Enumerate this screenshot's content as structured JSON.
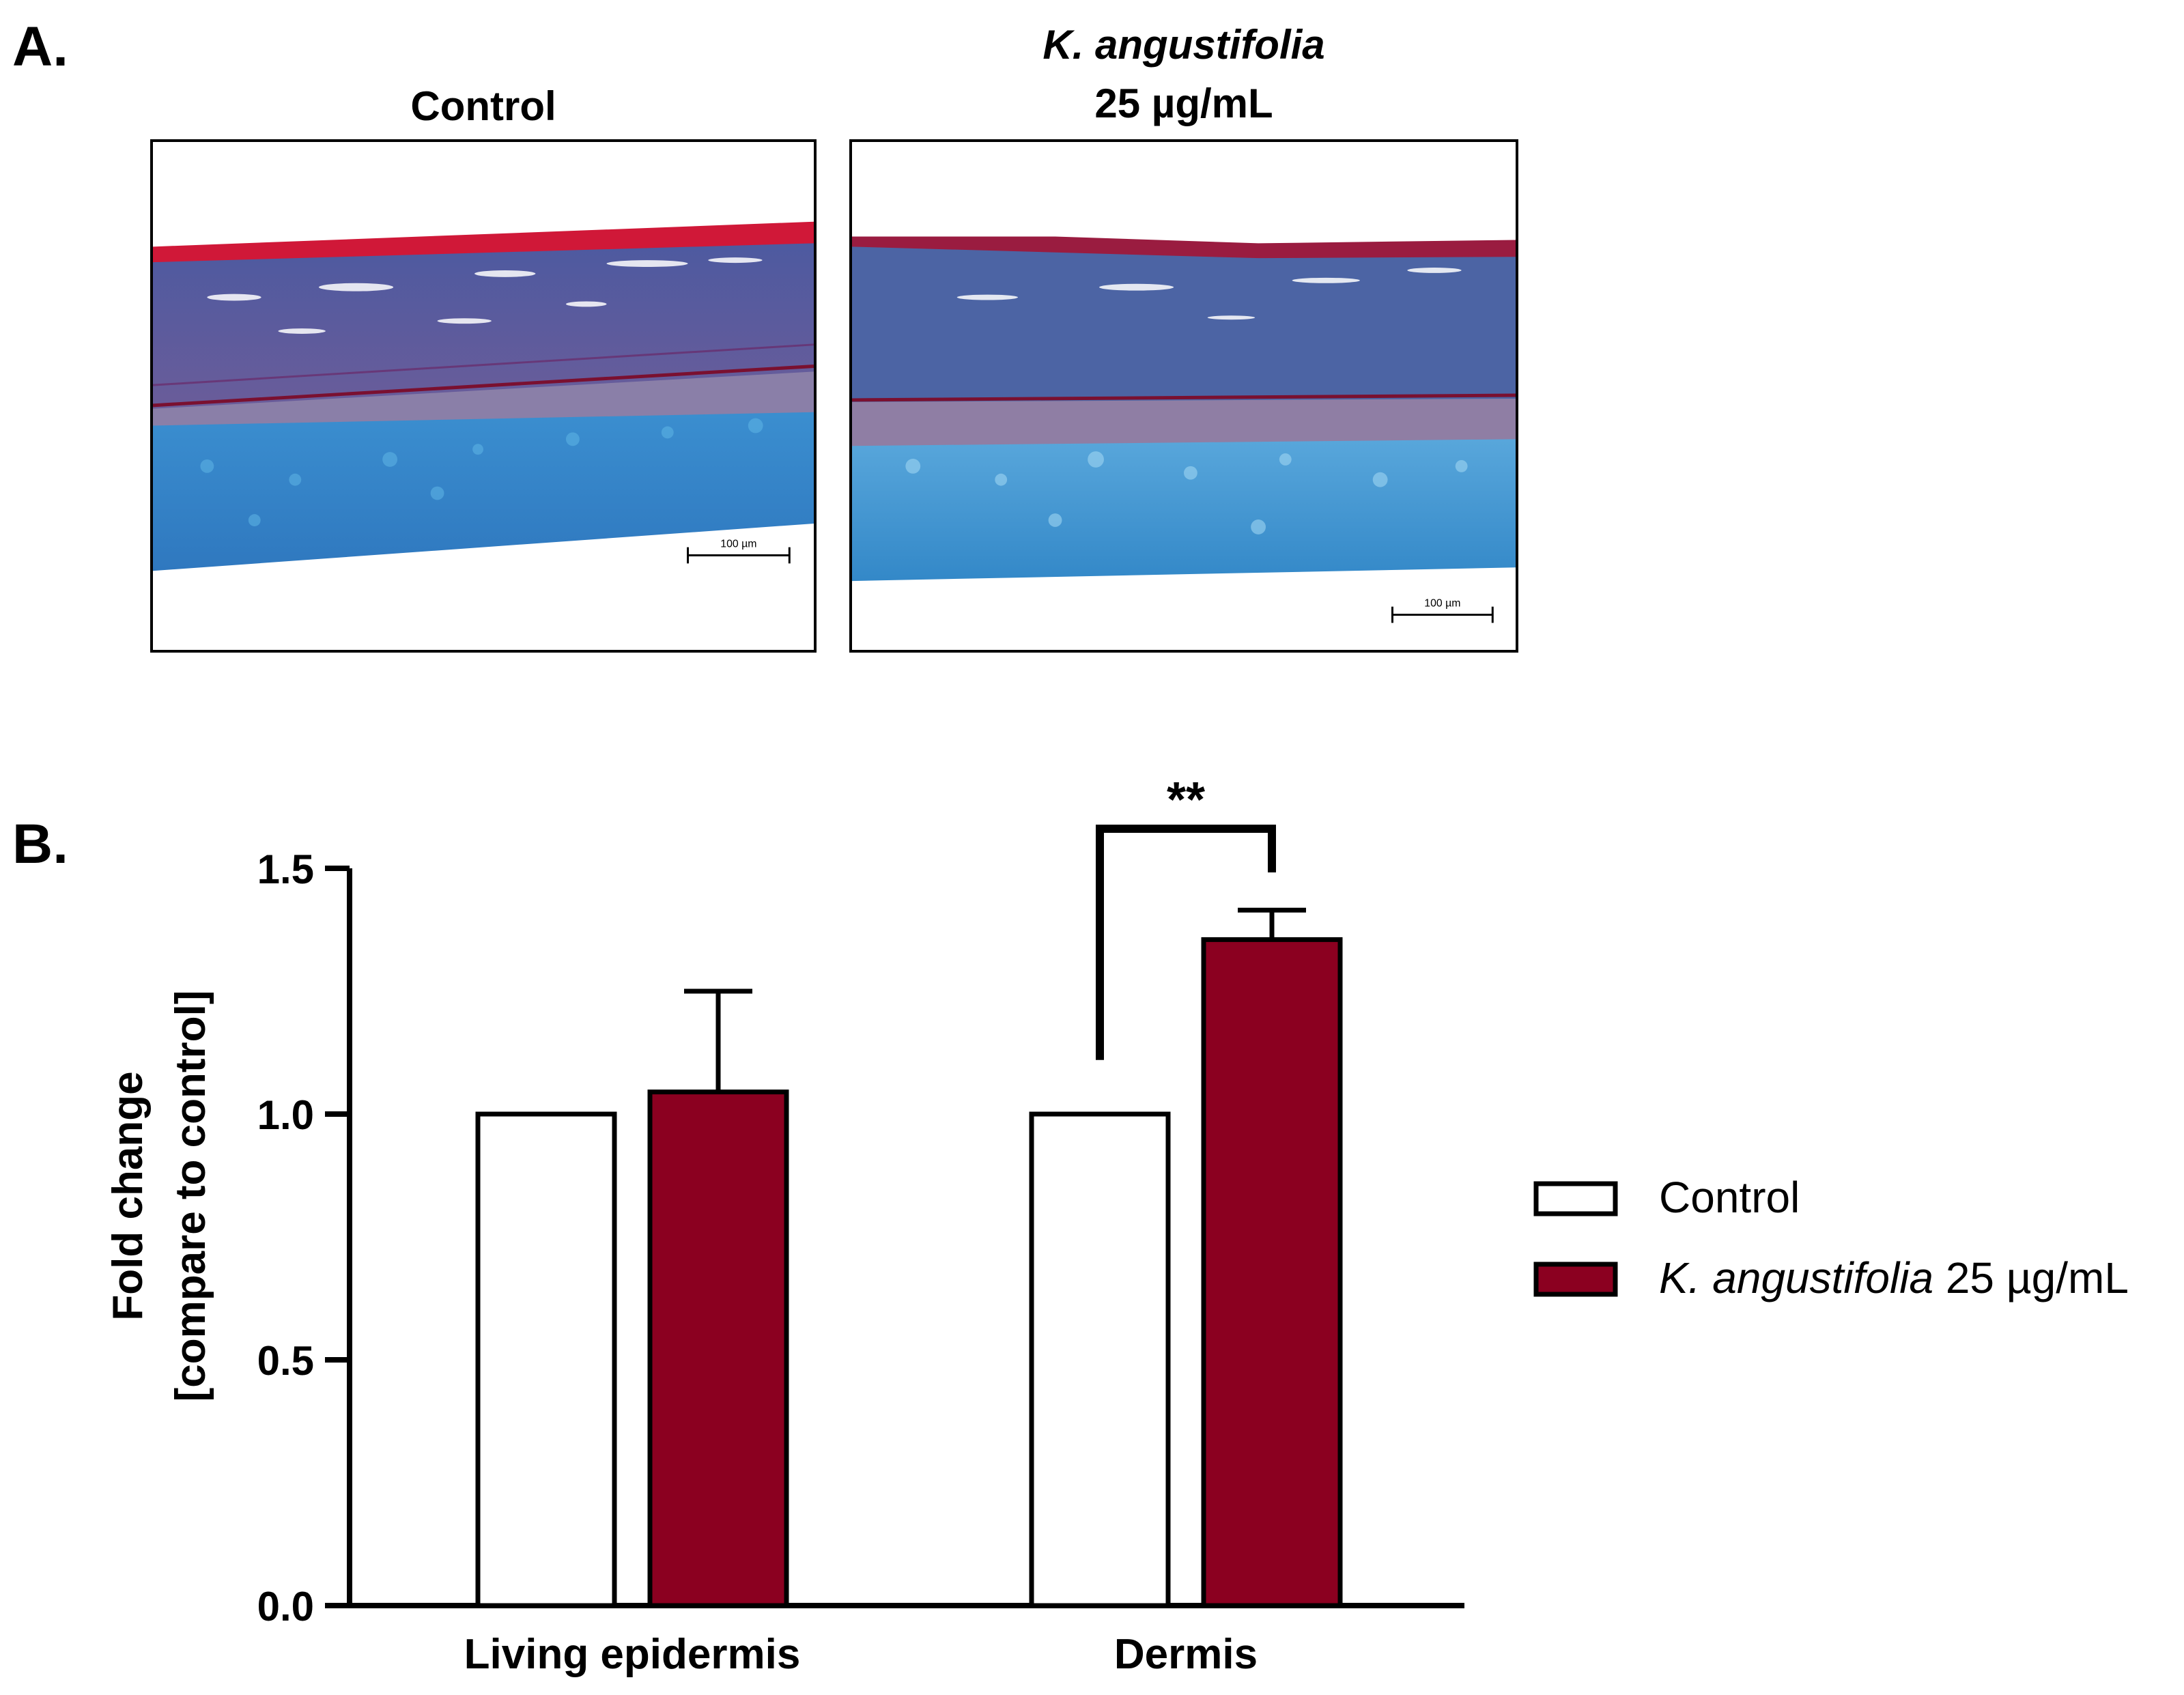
{
  "panel_a": {
    "letter": "A.",
    "images": [
      {
        "title_lines": [
          "Control"
        ],
        "scalebar_label": "100 µm"
      },
      {
        "title_lines": [
          "K. angustifolia",
          "25 µg/mL"
        ],
        "scalebar_label": "100 µm"
      }
    ]
  },
  "panel_b": {
    "letter": "B."
  },
  "colors": {
    "control_fill": "#ffffff",
    "treatment_fill": "#8b0020",
    "stroke": "#000000"
  },
  "chart_data": {
    "type": "bar",
    "categories": [
      "Living epidermis",
      "Dermis"
    ],
    "series": [
      {
        "name": "Control",
        "values": [
          1.0,
          1.0
        ],
        "errors": [
          0,
          0
        ]
      },
      {
        "name": "K. angustifolia 25 µg/mL",
        "values": [
          1.045,
          1.355
        ],
        "errors": [
          0.205,
          0.06
        ]
      }
    ],
    "ylabel_lines": [
      "Fold change",
      "[compare to control]"
    ],
    "ylim": [
      0.0,
      1.5
    ],
    "yticks": [
      "0.0",
      "0.5",
      "1.0",
      "1.5"
    ],
    "significance": [
      {
        "category": "Dermis",
        "label": "**"
      }
    ],
    "legend": {
      "position": "right",
      "entries": [
        {
          "italic": "",
          "text": "Control"
        },
        {
          "italic": "K. angustifolia",
          "text": " 25 µg/mL"
        }
      ]
    }
  }
}
